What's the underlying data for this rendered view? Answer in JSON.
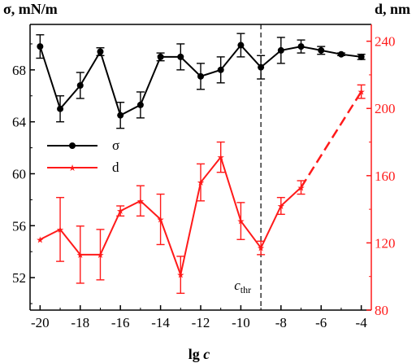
{
  "chart_data": {
    "type": "line",
    "title": "",
    "xlabel": "lg c",
    "xlabel_main": "lg ",
    "xlabel_var": "c",
    "ylabel_left": "σ, mN/m",
    "ylabel_right": "d, nm",
    "xlim": [
      -20.5,
      -3.5
    ],
    "ylim_left": [
      49.5,
      71.5
    ],
    "ylim_right": [
      80,
      250
    ],
    "xticks": [
      -20,
      -18,
      -16,
      -14,
      -12,
      -10,
      -8,
      -6,
      -4
    ],
    "yticks_left": [
      52,
      56,
      60,
      64,
      68
    ],
    "yticks_right": [
      80,
      120,
      160,
      200,
      240
    ],
    "grid": false,
    "legend_position": "left-middle",
    "threshold": {
      "x": -9,
      "label_main": "c",
      "label_sub": "thr"
    },
    "colors": {
      "sigma": "#000000",
      "d": "#ff1a1a"
    },
    "series": [
      {
        "name": "σ",
        "axis": "left",
        "marker": "circle",
        "x": [
          -20,
          -19,
          -18,
          -17,
          -16,
          -15,
          -14,
          -13,
          -12,
          -11,
          -10,
          -9,
          -8,
          -7,
          -6,
          -5,
          -4
        ],
        "y": [
          69.8,
          65.0,
          66.8,
          69.4,
          64.5,
          65.3,
          69.0,
          69.0,
          67.5,
          68.0,
          69.9,
          68.2,
          69.5,
          69.8,
          69.5,
          69.2,
          69.0
        ],
        "err": [
          0.9,
          1.0,
          1.0,
          0.3,
          1.0,
          1.0,
          0.3,
          1.0,
          1.0,
          1.0,
          0.9,
          0.9,
          1.0,
          0.5,
          0.3,
          0.1,
          0.2
        ]
      },
      {
        "name": "d",
        "axis": "right",
        "marker": "star",
        "x": [
          -20,
          -19,
          -18,
          -17,
          -16,
          -15,
          -14,
          -13,
          -12,
          -11,
          -10,
          -9,
          -8,
          -7,
          -4
        ],
        "y": [
          122,
          128,
          113,
          113,
          139,
          145,
          134,
          101,
          156,
          171,
          133,
          117,
          142,
          153,
          210
        ],
        "err": [
          0,
          19,
          17,
          15,
          3,
          9,
          15,
          11,
          11,
          9,
          11,
          4,
          5,
          4,
          4
        ],
        "dashed_from_x": -7
      }
    ]
  }
}
